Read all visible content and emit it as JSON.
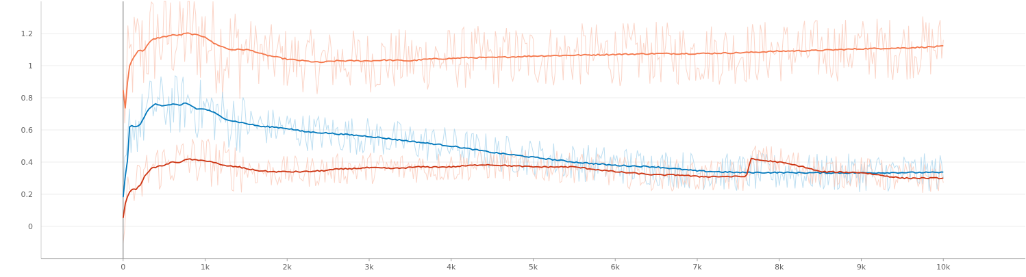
{
  "chart_data": {
    "type": "line",
    "xlim": [
      -1000,
      11000
    ],
    "ylim": [
      -0.2,
      1.4
    ],
    "grid": true,
    "x_ticks": [
      {
        "value": 0,
        "label": "0"
      },
      {
        "value": 1000,
        "label": "1k"
      },
      {
        "value": 2000,
        "label": "2k"
      },
      {
        "value": 3000,
        "label": "3k"
      },
      {
        "value": 4000,
        "label": "4k"
      },
      {
        "value": 5000,
        "label": "5k"
      },
      {
        "value": 6000,
        "label": "6k"
      },
      {
        "value": 7000,
        "label": "7k"
      },
      {
        "value": 8000,
        "label": "8k"
      },
      {
        "value": 9000,
        "label": "9k"
      },
      {
        "value": 10000,
        "label": "10k"
      }
    ],
    "y_ticks": [
      {
        "value": 0,
        "label": "0"
      },
      {
        "value": 0.2,
        "label": "0.2"
      },
      {
        "value": 0.4,
        "label": "0.4"
      },
      {
        "value": 0.6,
        "label": "0.6"
      },
      {
        "value": 0.8,
        "label": "0.8"
      },
      {
        "value": 1.0,
        "label": "1"
      },
      {
        "value": 1.2,
        "label": "1.2"
      }
    ],
    "series": [
      {
        "color": "#f4764a",
        "raw_color": "#f9c5b4",
        "noise": 0.2,
        "x": [
          0,
          30,
          60,
          80,
          100,
          150,
          200,
          250,
          300,
          350,
          400,
          500,
          600,
          700,
          750,
          800,
          900,
          1000,
          1050,
          1100,
          1200,
          1300,
          1400,
          1500,
          1600,
          1700,
          1800,
          1900,
          2000,
          2200,
          2400,
          2600,
          2800,
          3000,
          3200,
          3500,
          3700,
          4000,
          4200,
          4500,
          5000,
          5500,
          6000,
          6500,
          7000,
          7500,
          8000,
          8500,
          9000,
          9500,
          10000
        ],
        "y": [
          0.85,
          0.72,
          0.95,
          1.0,
          1.03,
          1.07,
          1.1,
          1.09,
          1.13,
          1.16,
          1.17,
          1.18,
          1.19,
          1.19,
          1.2,
          1.2,
          1.19,
          1.18,
          1.16,
          1.14,
          1.12,
          1.1,
          1.1,
          1.1,
          1.09,
          1.07,
          1.06,
          1.05,
          1.04,
          1.03,
          1.02,
          1.03,
          1.03,
          1.03,
          1.035,
          1.03,
          1.04,
          1.045,
          1.05,
          1.05,
          1.06,
          1.065,
          1.07,
          1.075,
          1.075,
          1.08,
          1.09,
          1.095,
          1.105,
          1.11,
          1.12
        ]
      },
      {
        "color": "#0077bb",
        "raw_color": "#a6d3ec",
        "noise": 0.12,
        "x": [
          0,
          30,
          50,
          70,
          100,
          150,
          200,
          250,
          300,
          350,
          400,
          500,
          600,
          700,
          750,
          800,
          900,
          1000,
          1100,
          1200,
          1300,
          1400,
          1500,
          1600,
          1700,
          1800,
          2000,
          2200,
          2500,
          3000,
          3500,
          4000,
          4500,
          5000,
          5500,
          6000,
          6500,
          7000,
          7500,
          8000,
          8500,
          9000,
          9500,
          10000
        ],
        "y": [
          0.18,
          0.33,
          0.38,
          0.62,
          0.63,
          0.62,
          0.63,
          0.67,
          0.72,
          0.75,
          0.76,
          0.75,
          0.76,
          0.75,
          0.77,
          0.76,
          0.73,
          0.73,
          0.71,
          0.68,
          0.66,
          0.65,
          0.64,
          0.63,
          0.62,
          0.62,
          0.61,
          0.59,
          0.58,
          0.56,
          0.53,
          0.5,
          0.46,
          0.43,
          0.4,
          0.38,
          0.37,
          0.345,
          0.335,
          0.335,
          0.333,
          0.333,
          0.335,
          0.335
        ]
      },
      {
        "color": "#cc3311",
        "raw_color": "#f9c5b4",
        "noise": 0.1,
        "x": [
          0,
          30,
          60,
          100,
          150,
          200,
          250,
          300,
          350,
          400,
          500,
          600,
          700,
          800,
          900,
          1000,
          1100,
          1200,
          1400,
          1600,
          1800,
          2000,
          2200,
          2400,
          2600,
          2800,
          3000,
          3300,
          3600,
          4000,
          4400,
          4800,
          5000,
          5500,
          6000,
          6500,
          6800,
          7000,
          7300,
          7600,
          7650,
          7800,
          8000,
          8300,
          8500,
          9000,
          9500,
          10000
        ],
        "y": [
          0.05,
          0.15,
          0.2,
          0.23,
          0.23,
          0.25,
          0.3,
          0.34,
          0.36,
          0.37,
          0.38,
          0.4,
          0.4,
          0.42,
          0.41,
          0.41,
          0.4,
          0.38,
          0.37,
          0.35,
          0.34,
          0.34,
          0.34,
          0.345,
          0.355,
          0.36,
          0.365,
          0.36,
          0.37,
          0.37,
          0.385,
          0.375,
          0.37,
          0.37,
          0.34,
          0.32,
          0.32,
          0.31,
          0.31,
          0.31,
          0.42,
          0.41,
          0.4,
          0.37,
          0.34,
          0.335,
          0.3,
          0.3
        ]
      }
    ]
  }
}
